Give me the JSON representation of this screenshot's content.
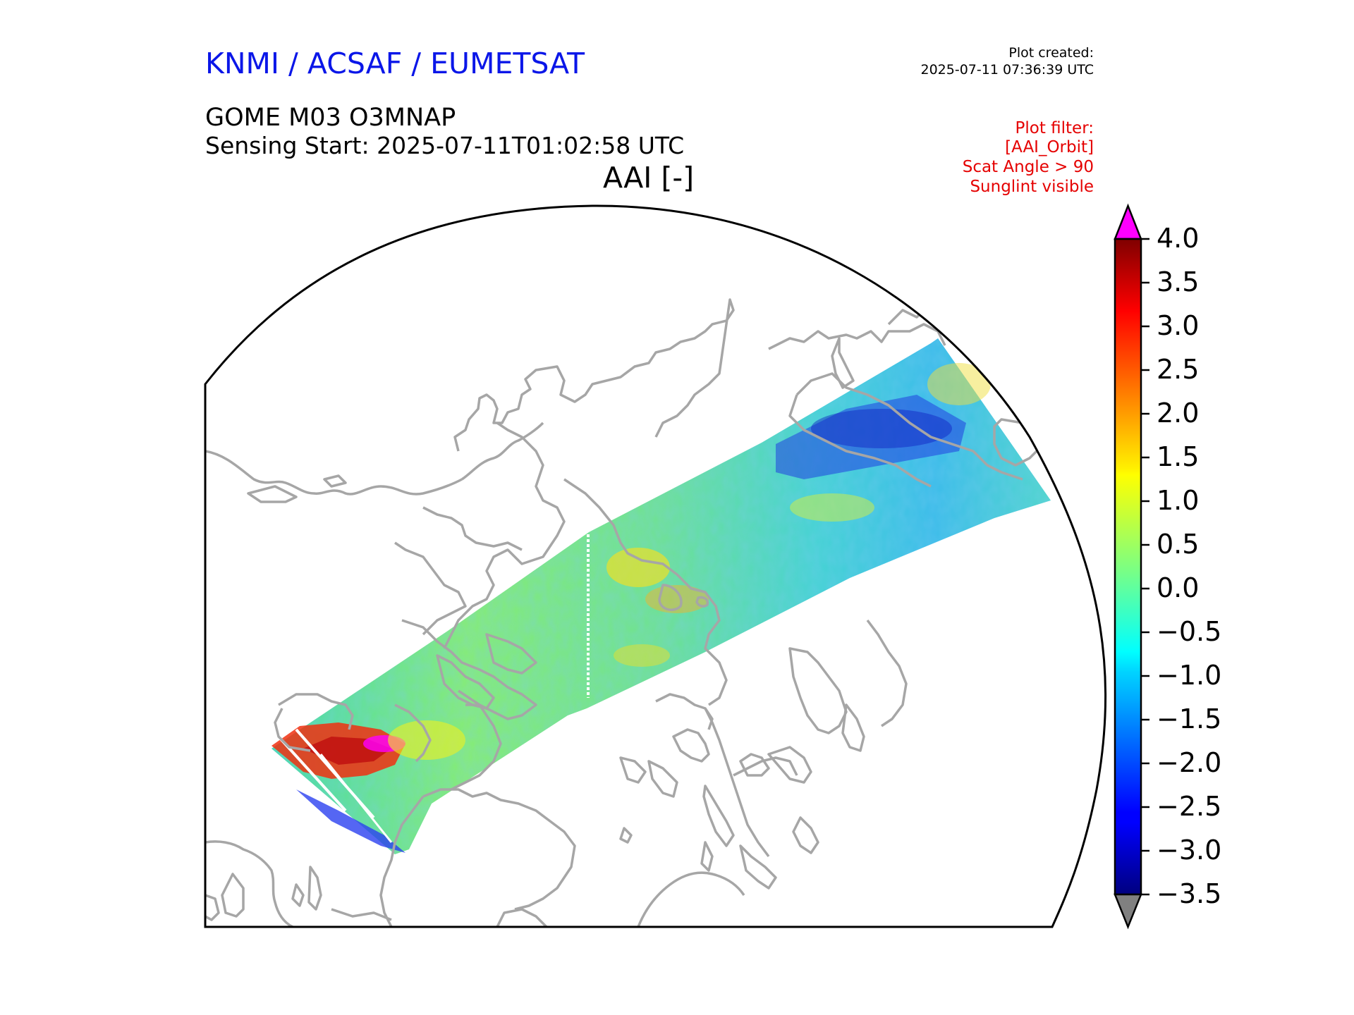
{
  "header": {
    "organization": "KNMI / ACSAF / EUMETSAT",
    "plot_created_label": "Plot created:",
    "plot_created_time": "2025-07-11 07:36:39 UTC",
    "product": "GOME M03 O3MNAP",
    "sensing_start": "Sensing Start: 2025-07-11T01:02:58 UTC",
    "variable": "AAI [-]"
  },
  "filter": {
    "lines": [
      "Plot filter:",
      "[AAI_Orbit]",
      "Scat Angle > 90",
      "Sunglint visible"
    ]
  },
  "colorbar": {
    "min": -3.5,
    "max": 4.0,
    "ticks": [
      "4.0",
      "3.5",
      "3.0",
      "2.5",
      "2.0",
      "1.5",
      "1.0",
      "0.5",
      "0.0",
      "−0.5",
      "−1.0",
      "−1.5",
      "−2.0",
      "−2.5",
      "−3.0",
      "−3.5"
    ],
    "tick_values": [
      4.0,
      3.5,
      3.0,
      2.5,
      2.0,
      1.5,
      1.0,
      0.5,
      0.0,
      -0.5,
      -1.0,
      -1.5,
      -2.0,
      -2.5,
      -3.0,
      -3.5
    ],
    "colormap": "jet",
    "over_color": "#ff00ff",
    "under_color": "#808080"
  },
  "colors": {
    "coastline": "#a6a6a6",
    "frame": "#000000"
  }
}
